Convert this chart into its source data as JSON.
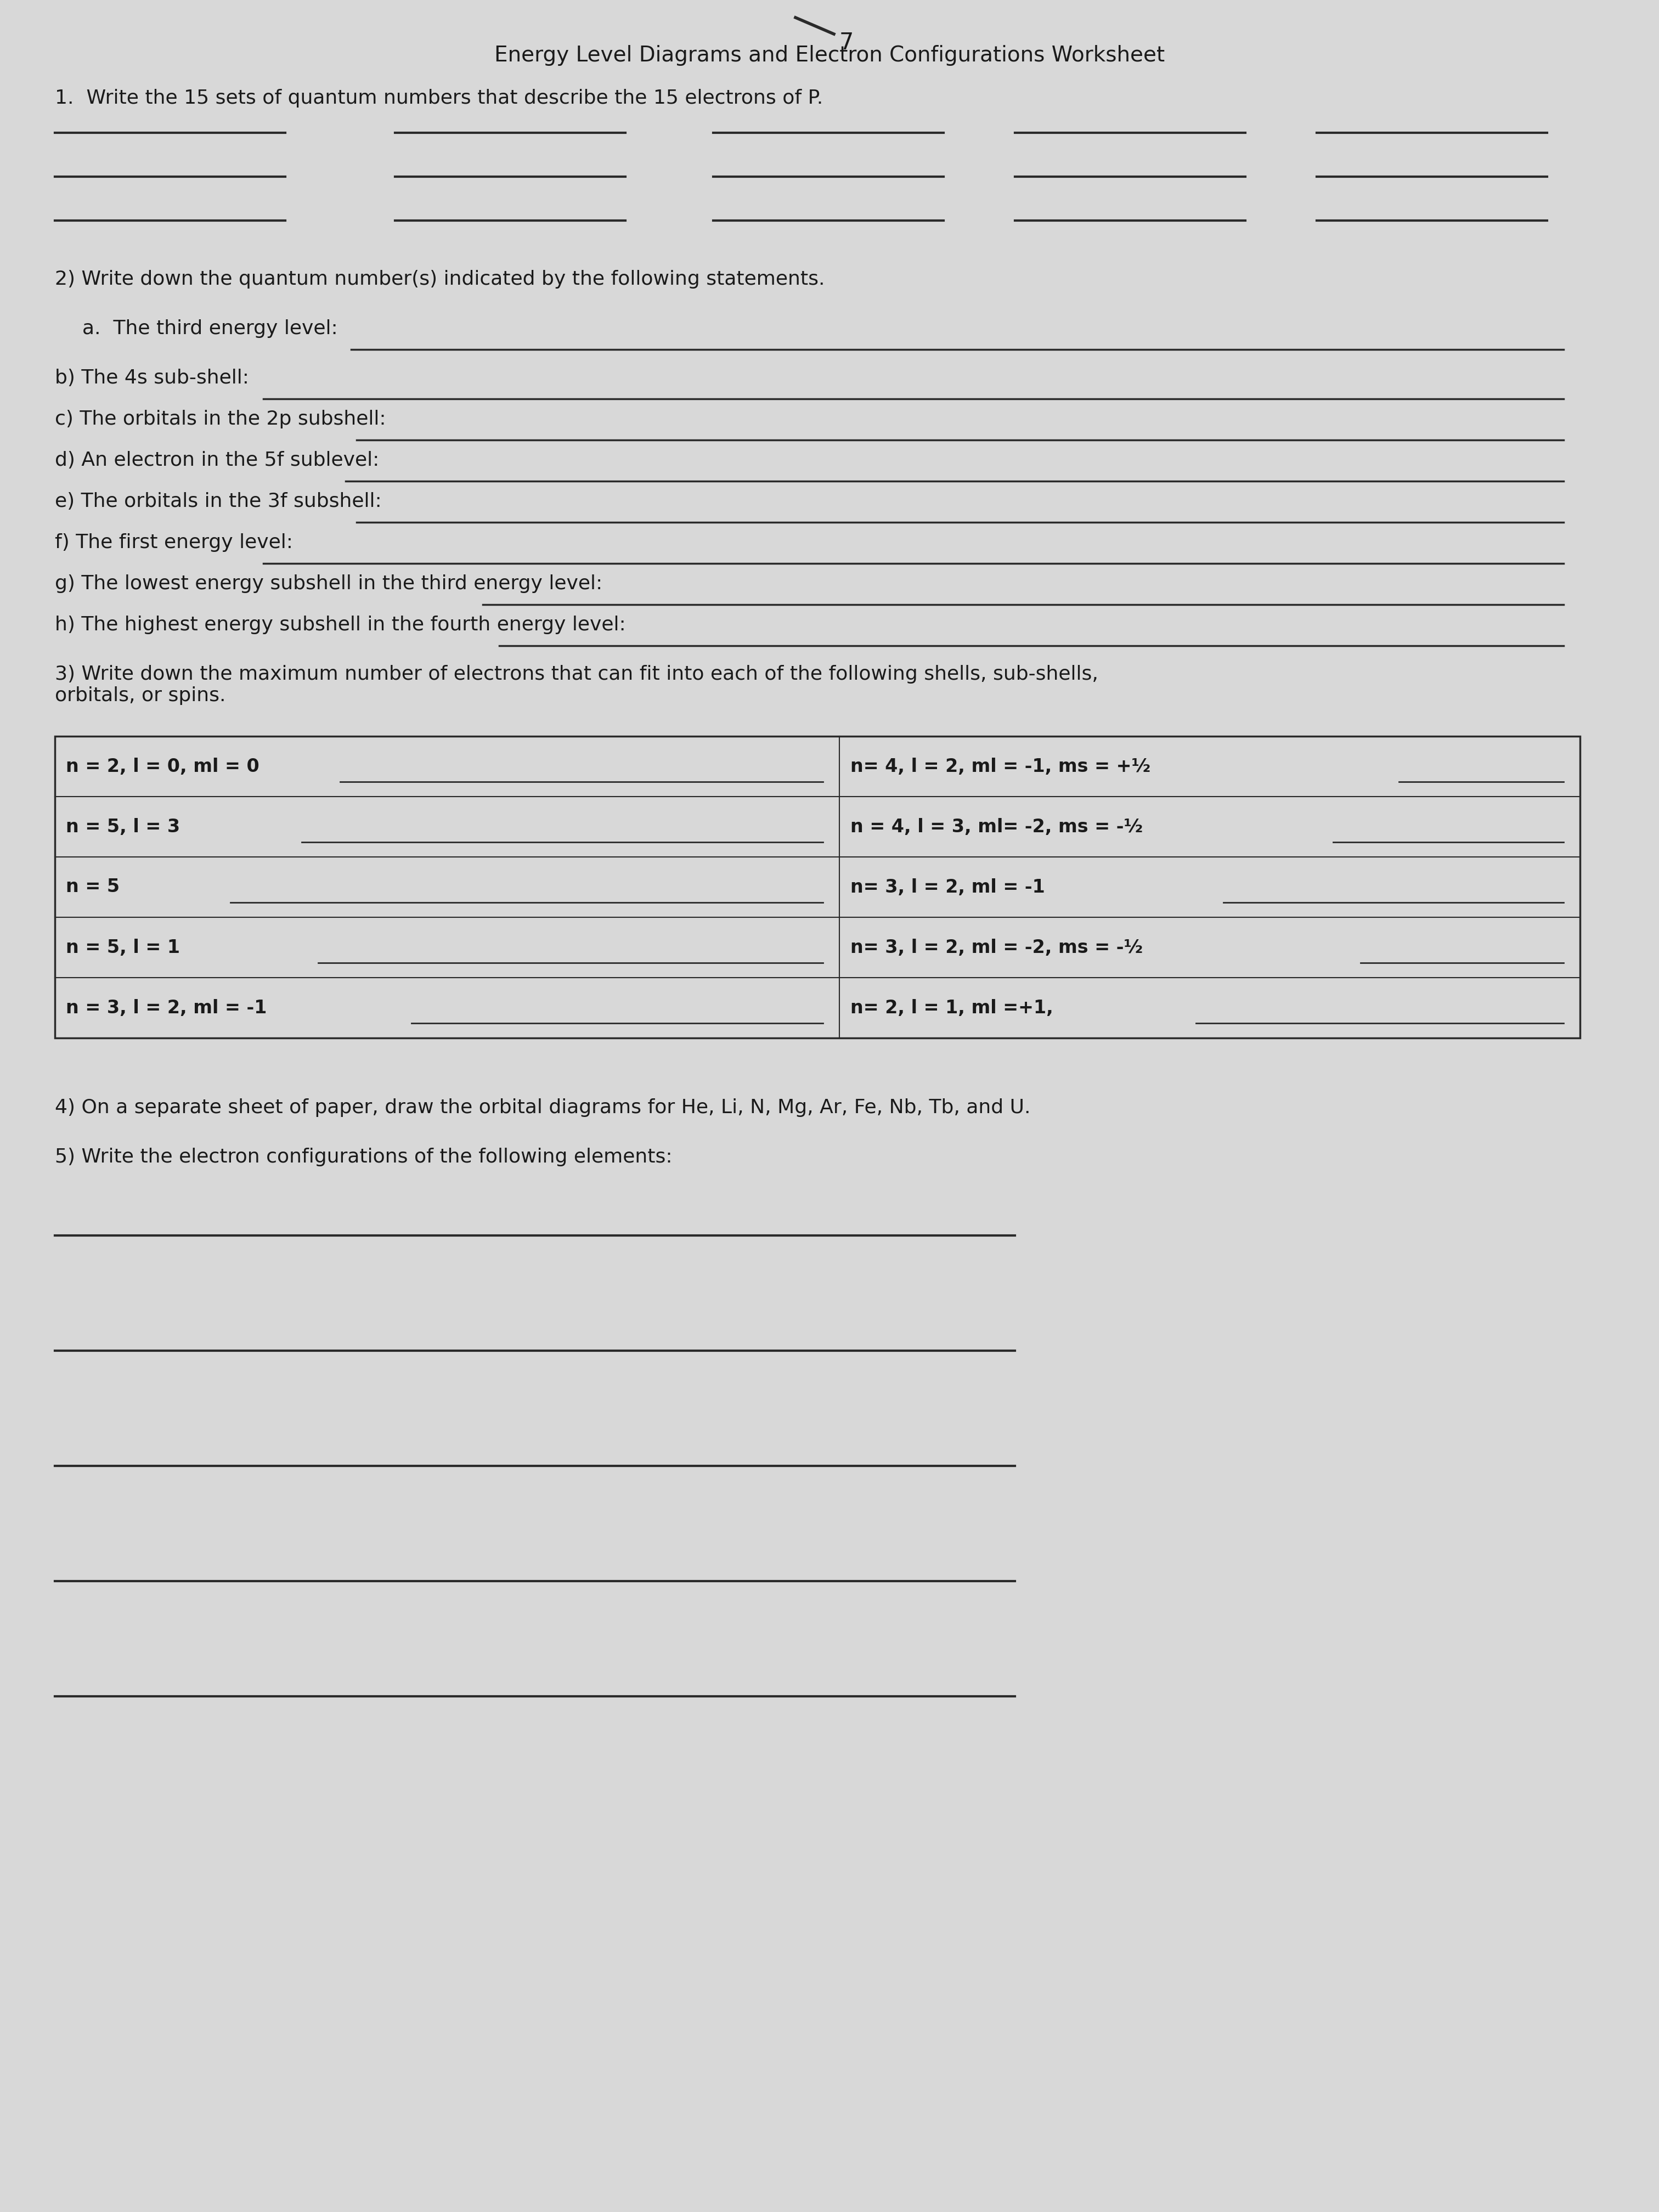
{
  "title": "Energy Level Diagrams and Electron Configurations Worksheet",
  "bg_color": "#d8d8d8",
  "paper_color": "#e0e2e5",
  "text_color": "#1a1a1a",
  "line_color": "#2a2a2a",
  "title_fontsize": 28,
  "body_fontsize": 26,
  "q1_text": "1.  Write the 15 sets of quantum numbers that describe the 15 electrons of P.",
  "q2_heading": "2) Write down the quantum number(s) indicated by the following statements.",
  "q2_items": [
    "a.  The third energy level:",
    "b) The 4s sub-shell:",
    "c) The orbitals in the 2p subshell:",
    "d) An electron in the 5f sublevel:",
    "e) The orbitals in the 3f subshell:",
    "f) The first energy level:",
    "g) The lowest energy subshell in the third energy level:",
    "h) The highest energy subshell in the fourth energy level:"
  ],
  "q3_heading": "3) Write down the maximum number of electrons that can fit into each of the following shells, sub-shells,\norbitals, or spins.",
  "table_left": [
    "n = 2, l = 0, ml = 0",
    "n = 5, l = 3",
    "n = 5",
    "n = 5, l = 1",
    "n = 3, l = 2, ml = -1"
  ],
  "table_right": [
    "n= 4, l = 2, ml = -1, ms = +½",
    "n = 4, l = 3, ml= -2, ms = -½",
    "n= 3, l = 2, ml = -1",
    "n= 3, l = 2, ml = -2, ms = -½",
    "n= 2, l = 1, ml =+1,"
  ],
  "q4_text": "4) On a separate sheet of paper, draw the orbital diagrams for He, Li, N, Mg, Ar, Fe, Nb, Tb, and U.",
  "q5_text": "5) Write the electron configurations of the following elements:"
}
